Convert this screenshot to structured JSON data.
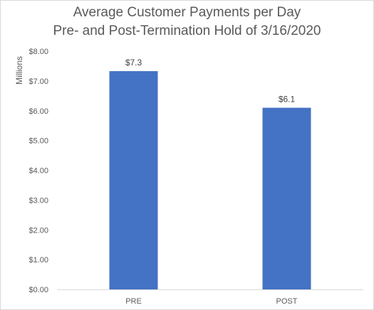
{
  "chart_data": {
    "type": "bar",
    "title": "Average Customer Payments per Day",
    "subtitle": "Pre- and Post-Termination Hold of 3/16/2020",
    "ylabel": "Millions",
    "xlabel": "",
    "categories": [
      "PRE",
      "POST"
    ],
    "values": [
      7.33,
      6.1
    ],
    "data_labels": [
      "$7.3",
      "$6.1"
    ],
    "ylim": [
      0,
      8
    ],
    "yticks": [
      0,
      1,
      2,
      3,
      4,
      5,
      6,
      7,
      8
    ],
    "ytick_labels": [
      "$0.00",
      "$1.00",
      "$2.00",
      "$3.00",
      "$4.00",
      "$5.00",
      "$6.00",
      "$7.00",
      "$8.00"
    ],
    "bar_color": "#4472C4",
    "grid": false
  }
}
